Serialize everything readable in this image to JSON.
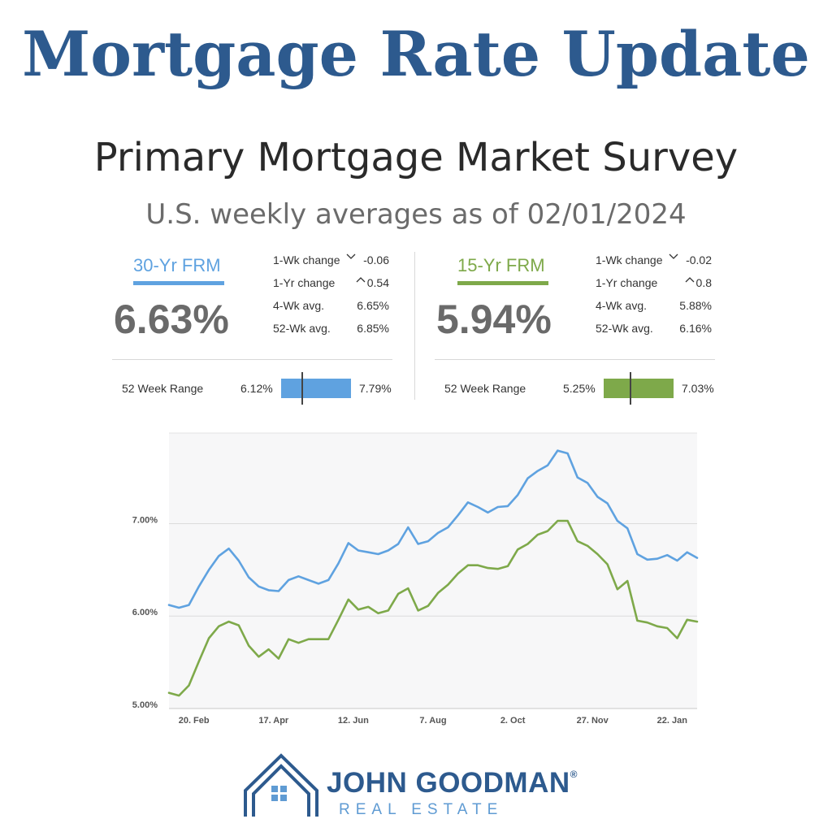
{
  "header": {
    "title": "Mortgage Rate Update",
    "subtitle": "Primary Mortgage Market Survey",
    "asof": "U.S. weekly averages as of 02/01/2024"
  },
  "colors": {
    "title": "#2d5a8e",
    "frm30": "#5fa2e0",
    "frm15": "#7ea94a",
    "brand_light": "#5f9bd3"
  },
  "frm30": {
    "label": "30-Yr FRM",
    "rate": "6.63%",
    "stats": [
      {
        "label": "1-Wk change",
        "arrow": "down",
        "value": "-0.06"
      },
      {
        "label": "1-Yr change",
        "arrow": "up",
        "value": "0.54"
      },
      {
        "label": "4-Wk avg.",
        "arrow": "",
        "value": "6.65%"
      },
      {
        "label": "52-Wk avg.",
        "arrow": "",
        "value": "6.85%"
      }
    ],
    "range_label": "52 Week Range",
    "range_low": "6.12%",
    "range_high": "7.79%",
    "range_current": 6.63,
    "range_low_num": 6.12,
    "range_high_num": 7.79
  },
  "frm15": {
    "label": "15-Yr FRM",
    "rate": "5.94%",
    "stats": [
      {
        "label": "1-Wk change",
        "arrow": "down",
        "value": "-0.02"
      },
      {
        "label": "1-Yr change",
        "arrow": "up",
        "value": "0.8"
      },
      {
        "label": "4-Wk avg.",
        "arrow": "",
        "value": "5.88%"
      },
      {
        "label": "52-Wk avg.",
        "arrow": "",
        "value": "6.16%"
      }
    ],
    "range_label": "52 Week Range",
    "range_low": "5.25%",
    "range_high": "7.03%",
    "range_current": 5.94,
    "range_low_num": 5.25,
    "range_high_num": 7.03
  },
  "chart_data": {
    "type": "line",
    "title": "",
    "xlabel": "",
    "ylabel": "",
    "ylim": [
      5.0,
      7.98
    ],
    "yticks": [
      5.0,
      6.0,
      7.0
    ],
    "ytick_labels": [
      "5.00%",
      "6.00%",
      "7.00%"
    ],
    "xticks": [
      {
        "label": "20. Feb",
        "index": 2.5
      },
      {
        "label": "17. Apr",
        "index": 10.5
      },
      {
        "label": "12. Jun",
        "index": 18.5
      },
      {
        "label": "7. Aug",
        "index": 26.5
      },
      {
        "label": "2. Oct",
        "index": 34.5
      },
      {
        "label": "27. Nov",
        "index": 42.5
      },
      {
        "label": "22. Jan",
        "index": 50.5
      }
    ],
    "grid": true,
    "legend": "none",
    "series": [
      {
        "color": "#5fa2e0",
        "values": [
          6.12,
          6.09,
          6.12,
          6.32,
          6.5,
          6.65,
          6.73,
          6.6,
          6.42,
          6.32,
          6.28,
          6.27,
          6.39,
          6.43,
          6.39,
          6.35,
          6.39,
          6.57,
          6.79,
          6.71,
          6.69,
          6.67,
          6.71,
          6.78,
          6.96,
          6.78,
          6.81,
          6.9,
          6.96,
          7.09,
          7.23,
          7.18,
          7.12,
          7.18,
          7.19,
          7.31,
          7.49,
          7.57,
          7.63,
          7.79,
          7.76,
          7.5,
          7.44,
          7.29,
          7.22,
          7.03,
          6.95,
          6.67,
          6.61,
          6.62,
          6.66,
          6.6,
          6.69,
          6.63
        ]
      },
      {
        "color": "#7ea94a",
        "values": [
          5.17,
          5.14,
          5.25,
          5.51,
          5.76,
          5.89,
          5.94,
          5.9,
          5.68,
          5.56,
          5.64,
          5.54,
          5.75,
          5.71,
          5.75,
          5.75,
          5.75,
          5.96,
          6.18,
          6.07,
          6.1,
          6.03,
          6.06,
          6.24,
          6.3,
          6.06,
          6.11,
          6.25,
          6.34,
          6.46,
          6.55,
          6.55,
          6.52,
          6.51,
          6.54,
          6.72,
          6.78,
          6.88,
          6.92,
          7.03,
          7.03,
          6.81,
          6.76,
          6.67,
          6.56,
          6.29,
          6.38,
          5.95,
          5.93,
          5.89,
          5.87,
          5.76,
          5.96,
          5.94
        ]
      }
    ]
  },
  "brand": {
    "name": "JOHN GOODMAN",
    "reg": "®",
    "sub": "REAL ESTATE"
  }
}
